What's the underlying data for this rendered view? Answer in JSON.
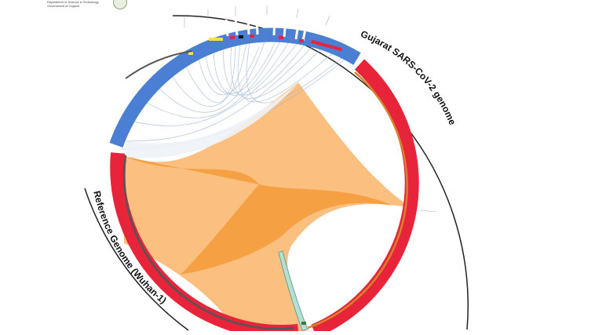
{
  "header": {
    "department_line1": "Department of Science & Technology",
    "department_line2": "Government of Gujarat"
  },
  "diagram": {
    "label_top_right": "Gujarat SARS-CoV-2 genome",
    "label_bottom_left": "Reference Genome (Wuhan-1)",
    "colors": {
      "genome_band": "#e8243a",
      "link_fill": "#fbbf7f",
      "link_overlap": "#f59a3a",
      "variant_band": "#4a7fd4",
      "inner_ring": "#555555",
      "inner_ring_gujarat": "#d7832a"
    }
  }
}
